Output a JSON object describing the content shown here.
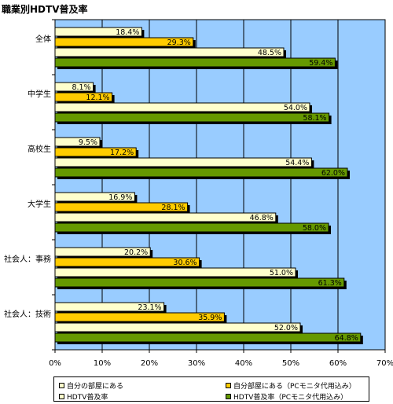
{
  "title": "職業別HDTV普及率",
  "chart_data": {
    "type": "bar",
    "orientation": "horizontal",
    "title": "職業別HDTV普及率",
    "categories": [
      "全体",
      "中学生",
      "高校生",
      "大学生",
      "社会人：事務",
      "社会人：技術"
    ],
    "series": [
      {
        "name": "自分の部屋にある",
        "color": "#ffffcc",
        "values": [
          18.4,
          8.1,
          9.5,
          16.9,
          20.2,
          23.1
        ]
      },
      {
        "name": "自分部屋にある（PCモニタ代用込み）",
        "color": "#ffcc00",
        "values": [
          29.3,
          12.1,
          17.2,
          28.1,
          30.6,
          35.9
        ]
      },
      {
        "name": "HDTV普及率",
        "color": "#ffffcc",
        "values": [
          48.5,
          54.0,
          54.4,
          46.8,
          51.0,
          52.0
        ]
      },
      {
        "name": "HDTV普及率（PCモニタ代用込み）",
        "color": "#669900",
        "values": [
          59.4,
          58.1,
          62.0,
          58.0,
          61.3,
          64.8
        ]
      }
    ],
    "value_labels": [
      [
        "18.4%",
        "29.3%",
        "48.5%",
        "59.4%"
      ],
      [
        "8.1%",
        "12.1%",
        "54.0%",
        "58.1%"
      ],
      [
        "9.5%",
        "17.2%",
        "54.4%",
        "62.0%"
      ],
      [
        "16.9%",
        "28.1%",
        "46.8%",
        "58.0%"
      ],
      [
        "20.2%",
        "30.6%",
        "51.0%",
        "61.3%"
      ],
      [
        "23.1%",
        "35.9%",
        "52.0%",
        "64.8%"
      ]
    ],
    "xlim": [
      0,
      70
    ],
    "xticks": [
      "0%",
      "10%",
      "20%",
      "30%",
      "40%",
      "50%",
      "60%",
      "70%"
    ],
    "grid": true,
    "legend_position": "bottom",
    "plot_background": "#99ccff"
  }
}
